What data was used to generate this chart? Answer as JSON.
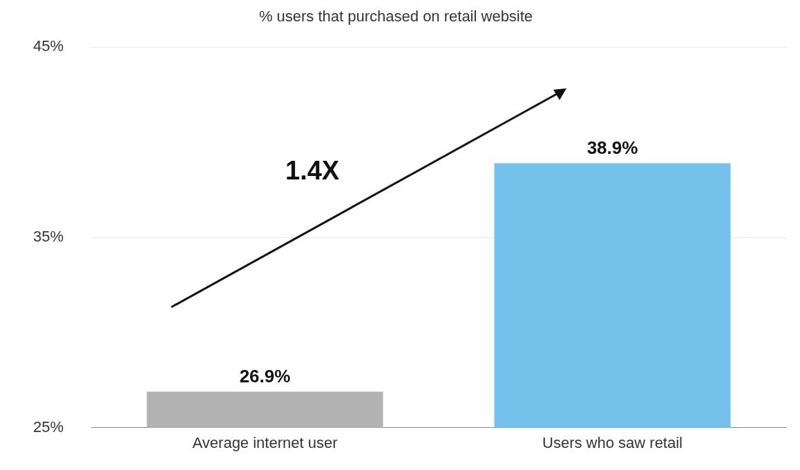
{
  "chart_data": {
    "type": "bar",
    "title": "% users that purchased on retail website",
    "categories": [
      "Average internet user",
      "Users who saw retail"
    ],
    "values": [
      26.9,
      38.9
    ],
    "colors": [
      "#b3b3b3",
      "#74c2ec"
    ],
    "value_labels": [
      "26.9%",
      "38.9%"
    ],
    "ylim": [
      25,
      45
    ],
    "yticks": [
      {
        "value": 25,
        "label": "25%"
      },
      {
        "value": 35,
        "label": "35%"
      },
      {
        "value": 45,
        "label": "45%"
      }
    ],
    "grid": "y",
    "legend": false,
    "annotations": [
      "1.4X"
    ]
  }
}
